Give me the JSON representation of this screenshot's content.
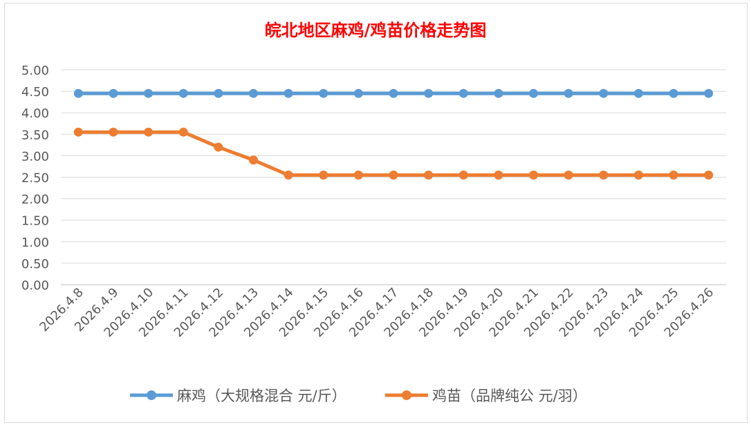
{
  "chart_data": {
    "type": "line",
    "title": "皖北地区麻鸡/鸡苗价格走势图",
    "categories": [
      "2026.4.8",
      "2026.4.9",
      "2026.4.10",
      "2026.4.11",
      "2026.4.12",
      "2026.4.13",
      "2026.4.14",
      "2026.4.15",
      "2026.4.16",
      "2026.4.17",
      "2026.4.18",
      "2026.4.19",
      "2026.4.20",
      "2026.4.21",
      "2026.4.22",
      "2026.4.23",
      "2026.4.24",
      "2026.4.25",
      "2026.4.26"
    ],
    "series": [
      {
        "name": "麻鸡（大规格混合 元/斤）",
        "color": "#5b9bd5",
        "values": [
          4.45,
          4.45,
          4.45,
          4.45,
          4.45,
          4.45,
          4.45,
          4.45,
          4.45,
          4.45,
          4.45,
          4.45,
          4.45,
          4.45,
          4.45,
          4.45,
          4.45,
          4.45,
          4.45
        ]
      },
      {
        "name": "鸡苗（品牌纯公 元/羽）",
        "color": "#ed7d31",
        "values": [
          3.55,
          3.55,
          3.55,
          3.55,
          3.2,
          2.9,
          2.55,
          2.55,
          2.55,
          2.55,
          2.55,
          2.55,
          2.55,
          2.55,
          2.55,
          2.55,
          2.55,
          2.55,
          2.55
        ]
      }
    ],
    "yticks": [
      "0.00",
      "0.50",
      "1.00",
      "1.50",
      "2.00",
      "2.50",
      "3.00",
      "3.50",
      "4.00",
      "4.50",
      "5.00"
    ],
    "ylim": [
      0,
      5
    ],
    "grid": true,
    "legend_position": "bottom",
    "title_color": "#ff0000"
  }
}
